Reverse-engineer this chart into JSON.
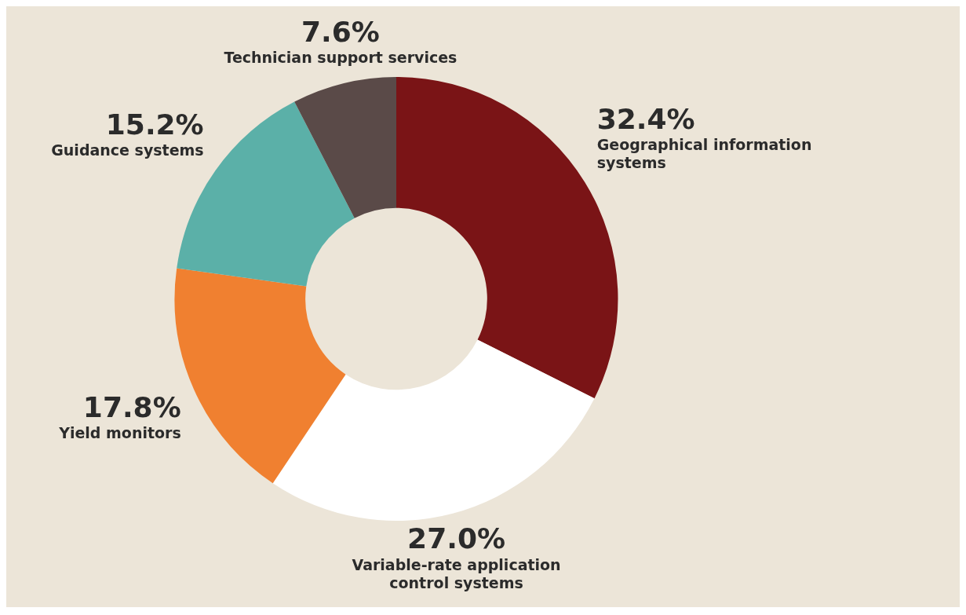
{
  "chart_data": {
    "type": "donut",
    "categories": [
      "Geographical information systems",
      "Variable-rate application control systems",
      "Yield monitors",
      "Guidance systems",
      "Technician support services"
    ],
    "values": [
      32.4,
      27.0,
      17.8,
      15.2,
      7.6
    ],
    "value_labels": [
      "32.4%",
      "27.0%",
      "17.8%",
      "15.2%",
      "7.6%"
    ],
    "colors": [
      "#7a1416",
      "#ffffff",
      "#f08030",
      "#5bb0a8",
      "#5a4a48"
    ],
    "legend": false
  }
}
